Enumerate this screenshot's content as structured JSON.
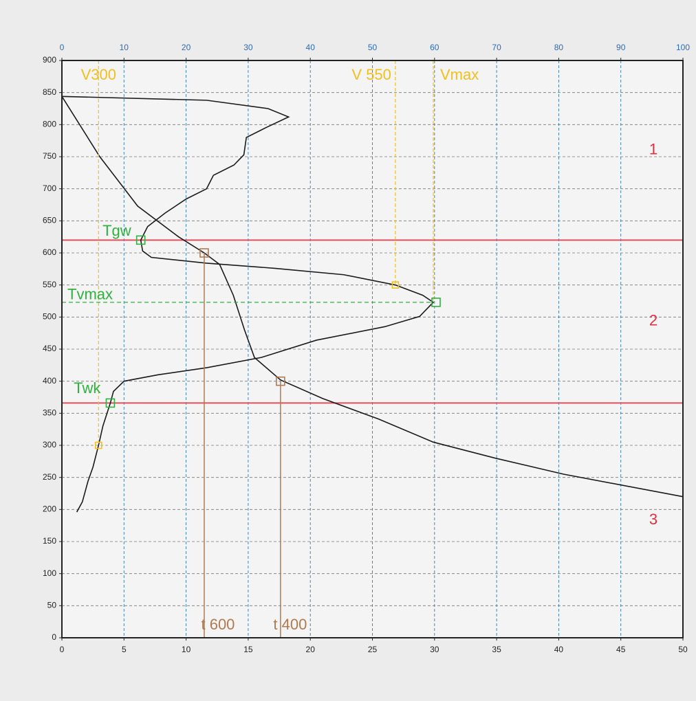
{
  "chart_data": {
    "type": "line",
    "xlim": [
      0,
      50
    ],
    "xticks": [
      0,
      5,
      10,
      15,
      20,
      25,
      30,
      35,
      40,
      45,
      50
    ],
    "x2lim": [
      0,
      100
    ],
    "x2ticks": [
      0,
      10,
      20,
      30,
      40,
      50,
      60,
      70,
      80,
      90,
      100
    ],
    "ylim": [
      0,
      900
    ],
    "yticks": [
      0,
      50,
      100,
      150,
      200,
      250,
      300,
      350,
      400,
      450,
      500,
      550,
      600,
      650,
      700,
      750,
      800,
      850,
      900
    ],
    "grid": true,
    "series": [
      {
        "color": "#1a1a1a",
        "x": [
          0,
          3.05,
          6.1,
          9.4,
          11.46,
          12.7,
          13.8,
          14.7,
          15.5,
          17.6,
          21.0,
          25.5,
          29.9,
          34.9,
          40.4,
          50
        ],
        "values": [
          844,
          750,
          673,
          625,
          600,
          582,
          534,
          480,
          437,
          402,
          373,
          341,
          305,
          280,
          255,
          220
        ]
      },
      {
        "color": "#1a1a1a",
        "axis": "x2",
        "x": [
          0,
          23.3,
          33.2,
          36.5,
          33,
          29.7,
          29.3,
          27.7,
          24.4,
          23.3,
          20,
          16.6,
          13.8,
          12.7,
          13,
          14.4,
          23.3,
          34.3,
          45.4,
          53.7,
          58.1,
          59.8,
          57.6,
          52,
          41,
          32.1,
          23.3,
          15.5,
          10,
          8.3,
          7.8,
          6.6,
          5.9,
          5,
          4.2,
          3.3,
          2.4
        ],
        "values": [
          844,
          838,
          825,
          812,
          796,
          780,
          753,
          737,
          721,
          700,
          684,
          662,
          641,
          620,
          603,
          593,
          584,
          576,
          566,
          550,
          534,
          523,
          501,
          485,
          464,
          437,
          421,
          410,
          400,
          384,
          366,
          330,
          300,
          266,
          244,
          212,
          196
        ]
      }
    ],
    "hlines": {
      "color": "#e0505a",
      "values": [
        620,
        366
      ]
    },
    "region_labels": {
      "color": "#e03040",
      "labels": [
        "1",
        "2",
        "3"
      ]
    },
    "points": [
      {
        "label": "V300",
        "x": 5.9,
        "y": 300,
        "axis": "x2",
        "color": "#f0c020",
        "guide": "up",
        "marker": true
      },
      {
        "label": "V 550",
        "x": 53.7,
        "y": 550,
        "axis": "x2",
        "color": "#f0c020",
        "guide": "up",
        "marker": true
      },
      {
        "label": "Vmax",
        "x": 59.8,
        "y": 523,
        "axis": "x2",
        "color": "#f0c020",
        "guide": "up",
        "marker": false
      },
      {
        "label": "Tgw",
        "x": 12.7,
        "y": 620,
        "axis": "x2",
        "color": "#30b040",
        "guide": "none",
        "marker": true
      },
      {
        "label": "Tvmax",
        "x": 59.8,
        "y": 523,
        "axis": "x2",
        "color": "#30b040",
        "guide": "left",
        "marker": true
      },
      {
        "label": "Twk",
        "x": 7.8,
        "y": 366,
        "axis": "x2",
        "color": "#30b040",
        "guide": "none",
        "marker": true
      },
      {
        "label": "t 600",
        "x": 11.46,
        "y": 600,
        "axis": "x",
        "color": "#b07a50",
        "guide": "down",
        "marker": true
      },
      {
        "label": "t 400",
        "x": 17.6,
        "y": 400,
        "axis": "x",
        "color": "#b07a50",
        "guide": "down",
        "marker": true
      }
    ]
  }
}
